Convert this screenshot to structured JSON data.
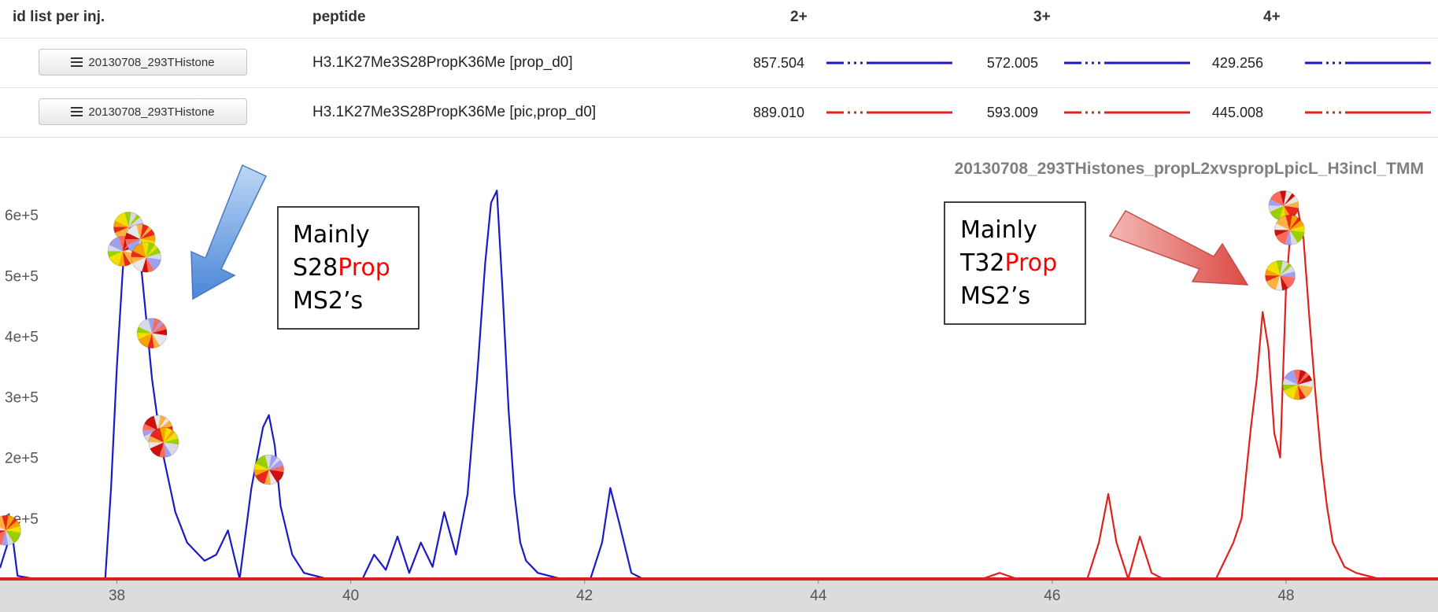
{
  "table": {
    "headers": {
      "id_list": "id list per inj.",
      "peptide": "peptide",
      "z2": "2+",
      "z3": "3+",
      "z4": "4+"
    },
    "rows": [
      {
        "button_label": "20130708_293THistone",
        "peptide": "H3.1K27Me3S28PropK36Me [prop_d0]",
        "mz2": "857.504",
        "mz3": "572.005",
        "mz4": "429.256",
        "color": "#1a1ac8"
      },
      {
        "button_label": "20130708_293THistone",
        "peptide": "H3.1K27Me3S28PropK36Me [pic,prop_d0]",
        "mz2": "889.010",
        "mz3": "593.009",
        "mz4": "445.008",
        "color": "#e0201a"
      }
    ]
  },
  "chart_data": {
    "type": "line",
    "title": "20130708_293THistones_propL2xvspropLpicL_H3incl_TMM",
    "xlim": [
      37.0,
      49.3
    ],
    "ylim": [
      0,
      700000
    ],
    "x_ticks": [
      38,
      40,
      42,
      44,
      46,
      48
    ],
    "y_ticks": [
      {
        "value": 100000,
        "label": "1e+5"
      },
      {
        "value": 200000,
        "label": "2e+5"
      },
      {
        "value": 300000,
        "label": "3e+5"
      },
      {
        "value": 400000,
        "label": "4e+5"
      },
      {
        "value": 500000,
        "label": "5e+5"
      },
      {
        "value": 600000,
        "label": "6e+5"
      }
    ],
    "series": [
      {
        "color": "#1a1ac8",
        "points": [
          [
            37.0,
            18000
          ],
          [
            37.1,
            80000
          ],
          [
            37.15,
            5000
          ],
          [
            37.3,
            0
          ],
          [
            37.9,
            0
          ],
          [
            37.95,
            150000
          ],
          [
            38.0,
            350000
          ],
          [
            38.05,
            510000
          ],
          [
            38.08,
            560000
          ],
          [
            38.15,
            570000
          ],
          [
            38.2,
            530000
          ],
          [
            38.25,
            430000
          ],
          [
            38.3,
            330000
          ],
          [
            38.35,
            260000
          ],
          [
            38.4,
            200000
          ],
          [
            38.5,
            110000
          ],
          [
            38.6,
            60000
          ],
          [
            38.75,
            30000
          ],
          [
            38.85,
            40000
          ],
          [
            38.95,
            80000
          ],
          [
            39.05,
            0
          ],
          [
            39.15,
            150000
          ],
          [
            39.25,
            250000
          ],
          [
            39.3,
            270000
          ],
          [
            39.35,
            220000
          ],
          [
            39.4,
            120000
          ],
          [
            39.5,
            40000
          ],
          [
            39.6,
            10000
          ],
          [
            39.8,
            0
          ],
          [
            40.1,
            0
          ],
          [
            40.2,
            40000
          ],
          [
            40.3,
            15000
          ],
          [
            40.4,
            70000
          ],
          [
            40.5,
            10000
          ],
          [
            40.6,
            60000
          ],
          [
            40.7,
            20000
          ],
          [
            40.8,
            110000
          ],
          [
            40.9,
            40000
          ],
          [
            41.0,
            140000
          ],
          [
            41.08,
            330000
          ],
          [
            41.15,
            520000
          ],
          [
            41.2,
            620000
          ],
          [
            41.25,
            640000
          ],
          [
            41.3,
            470000
          ],
          [
            41.35,
            280000
          ],
          [
            41.4,
            140000
          ],
          [
            41.45,
            60000
          ],
          [
            41.5,
            30000
          ],
          [
            41.6,
            10000
          ],
          [
            41.8,
            0
          ],
          [
            42.05,
            0
          ],
          [
            42.15,
            60000
          ],
          [
            42.22,
            150000
          ],
          [
            42.3,
            90000
          ],
          [
            42.4,
            10000
          ],
          [
            42.5,
            0
          ],
          [
            49.3,
            0
          ]
        ]
      },
      {
        "color": "#e0201a",
        "points": [
          [
            37.0,
            0
          ],
          [
            45.4,
            0
          ],
          [
            45.55,
            10000
          ],
          [
            45.7,
            0
          ],
          [
            46.3,
            0
          ],
          [
            46.4,
            60000
          ],
          [
            46.48,
            140000
          ],
          [
            46.55,
            60000
          ],
          [
            46.65,
            0
          ],
          [
            46.75,
            70000
          ],
          [
            46.85,
            10000
          ],
          [
            46.95,
            0
          ],
          [
            47.4,
            0
          ],
          [
            47.55,
            60000
          ],
          [
            47.62,
            100000
          ],
          [
            47.7,
            250000
          ],
          [
            47.75,
            330000
          ],
          [
            47.8,
            440000
          ],
          [
            47.85,
            380000
          ],
          [
            47.9,
            240000
          ],
          [
            47.95,
            200000
          ],
          [
            48.0,
            480000
          ],
          [
            48.05,
            600000
          ],
          [
            48.1,
            610000
          ],
          [
            48.15,
            560000
          ],
          [
            48.2,
            430000
          ],
          [
            48.25,
            310000
          ],
          [
            48.3,
            200000
          ],
          [
            48.35,
            120000
          ],
          [
            48.4,
            60000
          ],
          [
            48.5,
            20000
          ],
          [
            48.6,
            10000
          ],
          [
            48.8,
            0
          ],
          [
            49.3,
            0
          ]
        ]
      }
    ],
    "pies": [
      {
        "x": 37.05,
        "y": 80000
      },
      {
        "x": 38.1,
        "y": 580000
      },
      {
        "x": 38.05,
        "y": 540000
      },
      {
        "x": 38.2,
        "y": 560000
      },
      {
        "x": 38.25,
        "y": 530000
      },
      {
        "x": 38.3,
        "y": 405000
      },
      {
        "x": 38.35,
        "y": 245000
      },
      {
        "x": 38.4,
        "y": 225000
      },
      {
        "x": 39.3,
        "y": 180000
      },
      {
        "x": 47.98,
        "y": 615000
      },
      {
        "x": 48.03,
        "y": 575000
      },
      {
        "x": 47.95,
        "y": 500000
      },
      {
        "x": 48.1,
        "y": 320000
      }
    ],
    "annotations": [
      {
        "line1": "Mainly",
        "line2_prefix": "S28",
        "line2_highlight": "Prop",
        "line3": "MS2’s"
      },
      {
        "line1": "Mainly",
        "line2_prefix": "T32",
        "line2_highlight": "Prop",
        "line3": "MS2’s"
      }
    ]
  }
}
